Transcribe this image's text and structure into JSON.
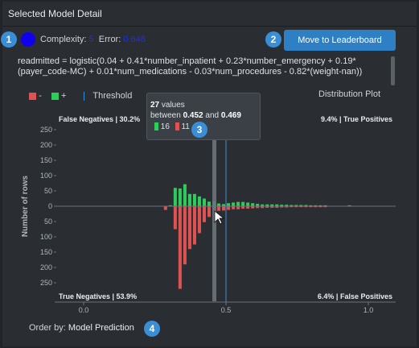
{
  "panel": {
    "title": "Selected Model Detail"
  },
  "model": {
    "complexity_label": "Complexity:",
    "complexity_value": "5",
    "error_label": "Error:",
    "error_value": "0.648",
    "color": "#1100ee"
  },
  "buttons": {
    "leaderboard": "Move to Leaderboard"
  },
  "formula": "readmitted = logistic(0.04 + 0.41*number_inpatient + 0.23*number_emergency + 0.19*(payer_code-MC) + 0.01*num_medications - 0.03*num_procedures - 0.82*(weight-nan))",
  "legend": {
    "neg_label": "-",
    "pos_label": "+",
    "threshold_label": "Threshold",
    "neg_color": "#e05252",
    "pos_color": "#2ecc5a",
    "threshold_color": "#3a8ed6"
  },
  "distribution_label": "Distribution Plot",
  "badges": [
    "1",
    "2",
    "3",
    "4"
  ],
  "chart_data": {
    "type": "bar",
    "ylabel": "Number of rows",
    "xlim": [
      0,
      1
    ],
    "ylim": [
      -300,
      300
    ],
    "x_ticks": [
      "0.0",
      "0.5",
      "1.0"
    ],
    "y_ticks_top": [
      "250",
      "200",
      "150",
      "100",
      "50"
    ],
    "y_ticks_zero": "0",
    "y_ticks_bottom": [
      "50",
      "100",
      "150",
      "200",
      "250"
    ],
    "threshold": 0.5,
    "highlight_bin": [
      0.452,
      0.469
    ],
    "quadrants": {
      "false_negatives": "False Negatives | 30.2%",
      "true_positives": "9.4% | True Positives",
      "true_negatives": "True Negatives | 53.9%",
      "false_positives": "6.4% | False Positives"
    },
    "bin_starts": [
      0.282,
      0.299,
      0.316,
      0.333,
      0.35,
      0.367,
      0.384,
      0.401,
      0.418,
      0.435,
      0.452,
      0.469,
      0.486,
      0.503,
      0.52,
      0.537,
      0.554,
      0.571,
      0.588,
      0.605,
      0.622,
      0.639,
      0.656,
      0.673,
      0.69,
      0.707,
      0.724,
      0.741,
      0.758,
      0.775,
      0.792,
      0.809,
      0.826,
      0.843,
      0.86,
      0.877,
      0.894,
      0.911,
      0.928,
      0.945
    ],
    "bin_width": 0.017,
    "positives": [
      0,
      3,
      60,
      58,
      72,
      40,
      40,
      32,
      25,
      15,
      16,
      9,
      7,
      10,
      12,
      14,
      14,
      12,
      10,
      8,
      6,
      6,
      6,
      6,
      5,
      5,
      4,
      4,
      4,
      4,
      3,
      3,
      3,
      3,
      0,
      0,
      0,
      0,
      3,
      0
    ],
    "negatives": [
      12,
      0,
      75,
      270,
      190,
      140,
      125,
      88,
      52,
      35,
      11,
      15,
      14,
      12,
      10,
      10,
      8,
      8,
      7,
      6,
      6,
      5,
      5,
      5,
      4,
      4,
      3,
      3,
      3,
      3,
      3,
      3,
      3,
      3,
      0,
      0,
      0,
      0,
      0,
      0
    ]
  },
  "tooltip": {
    "count": "27",
    "count_suffix": " values",
    "between": "between ",
    "low": "0.452",
    "and": " and ",
    "high": "0.469",
    "pos": "16",
    "neg": "11"
  },
  "order": {
    "label": "Order by:",
    "value": "Model Prediction"
  }
}
